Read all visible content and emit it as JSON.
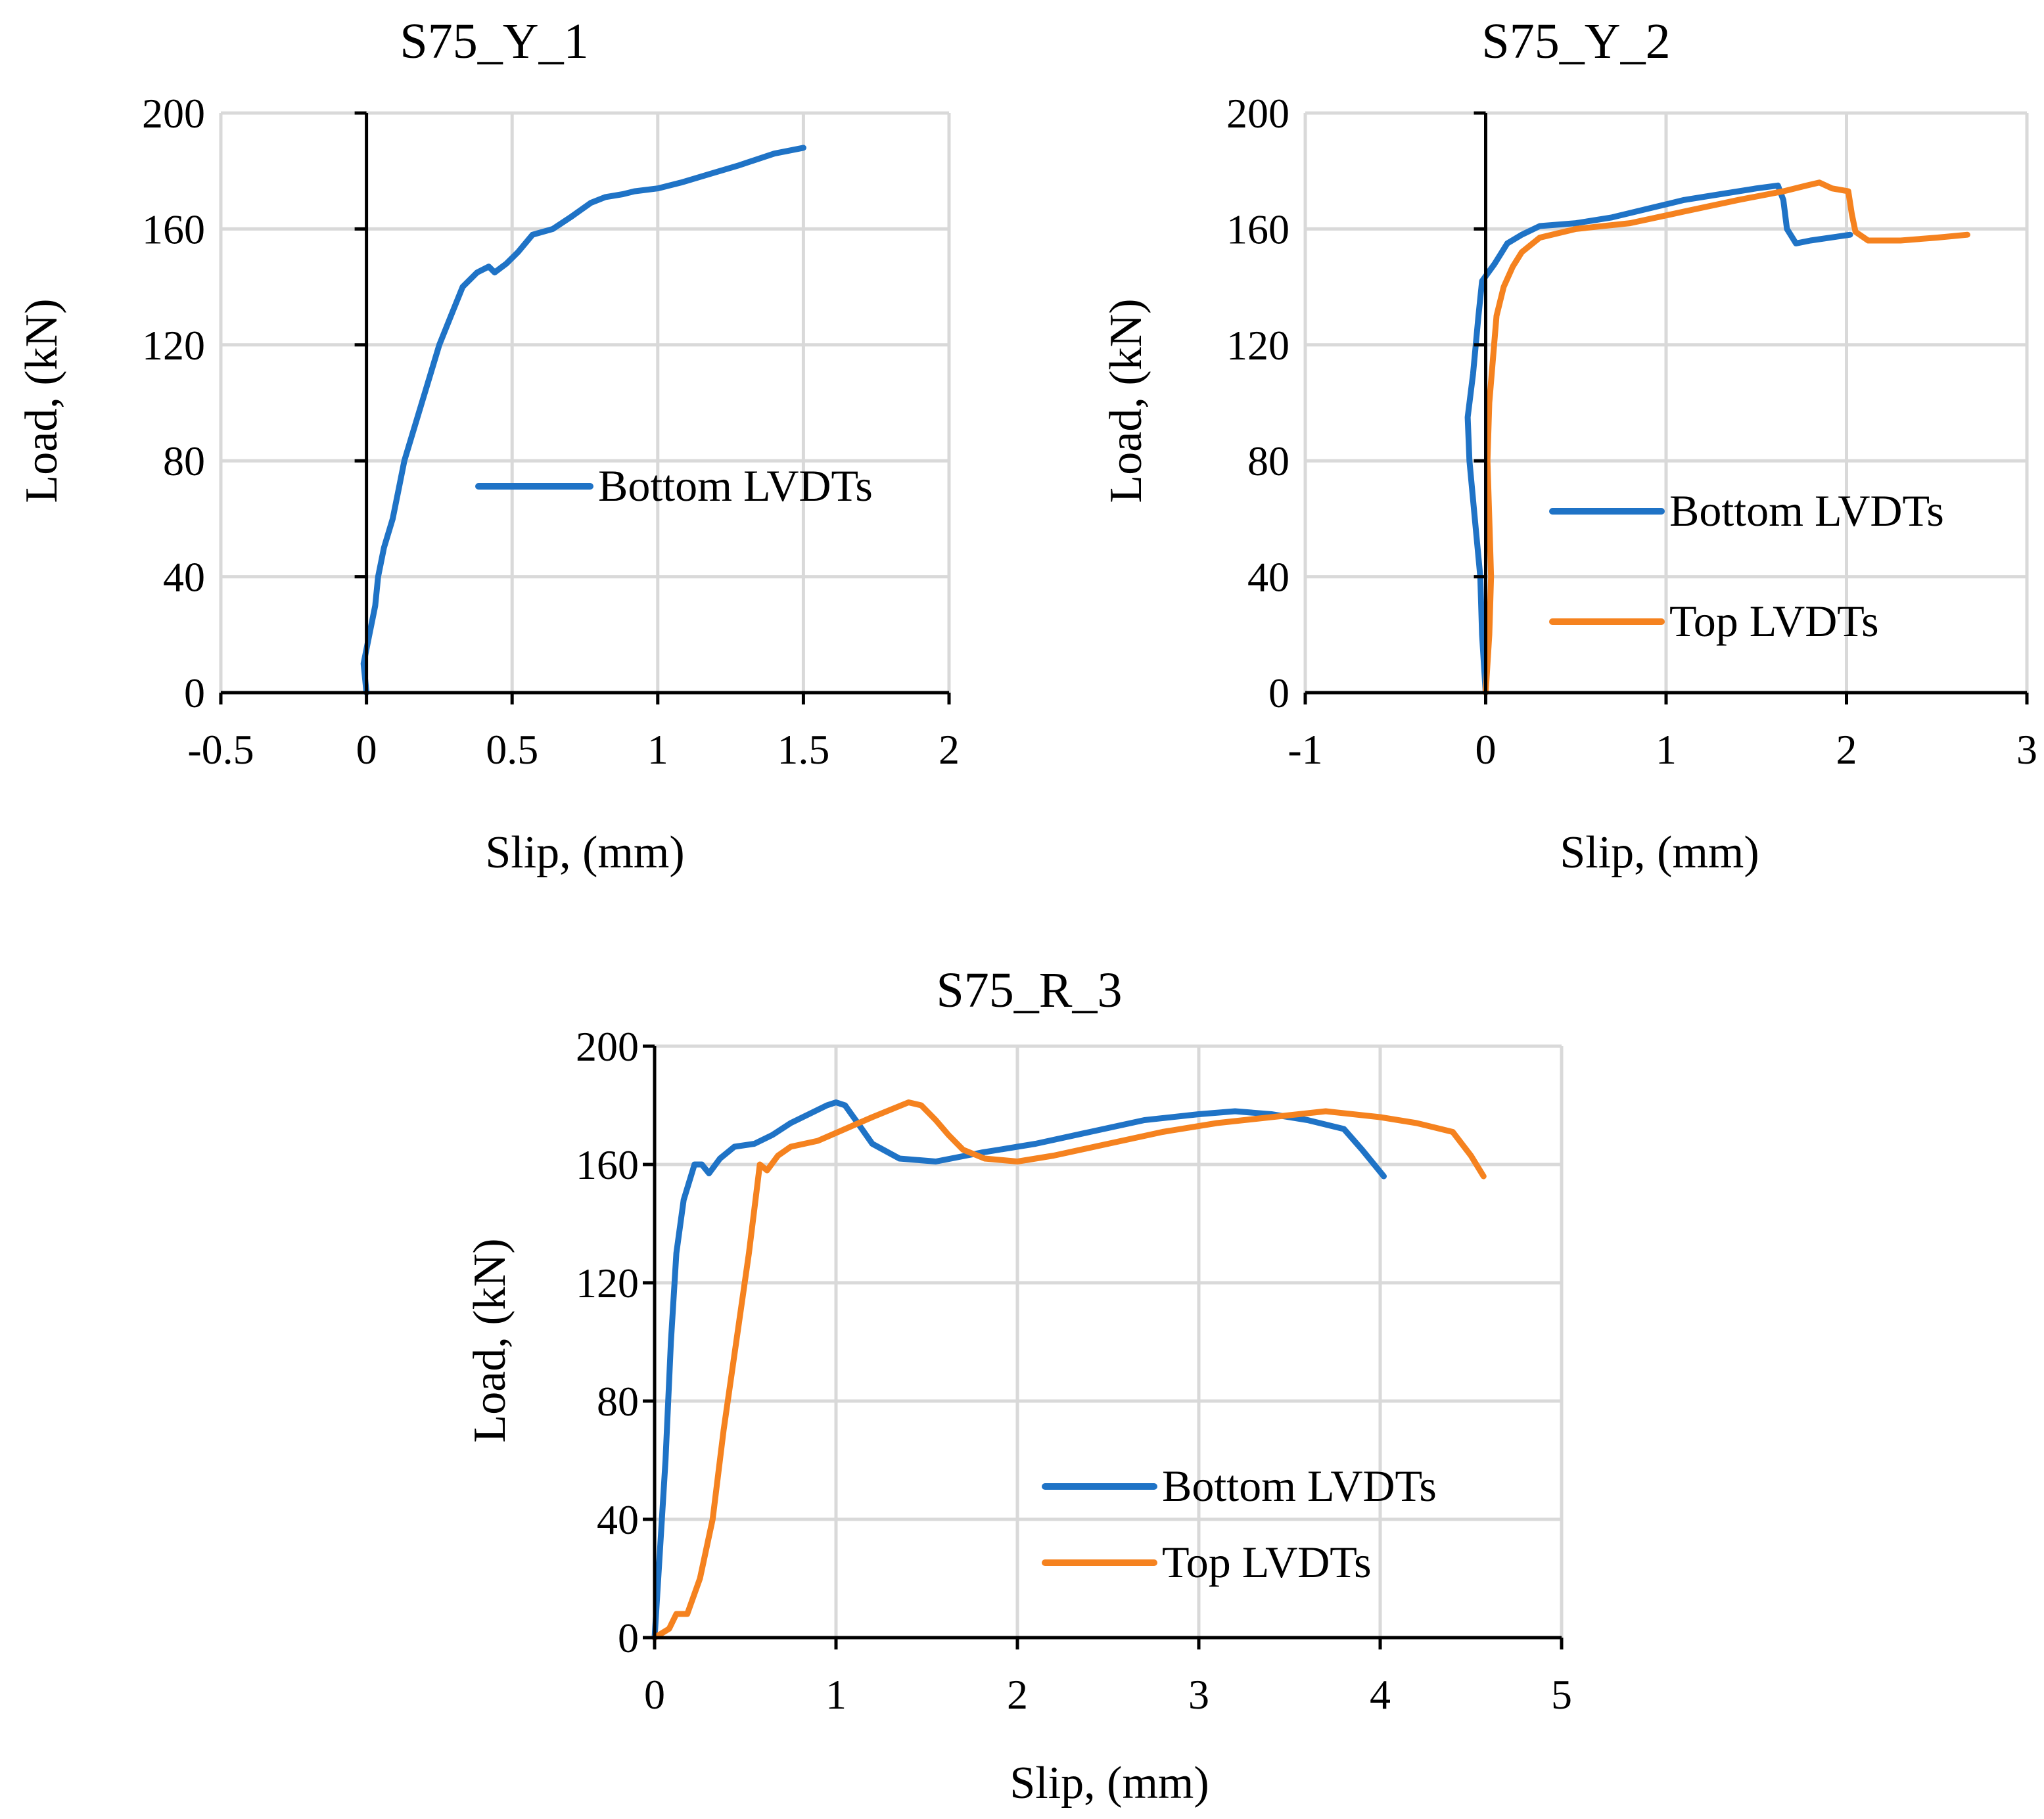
{
  "colors": {
    "bottom": "#1f73c6",
    "top": "#f5821f",
    "grid": "#d9d9d9",
    "axis": "#000000"
  },
  "chart_data": [
    {
      "type": "line",
      "title": "S75_Y_1",
      "xlabel": "Slip, (mm)",
      "ylabel": "Load, (kN)",
      "xlim": [
        -0.5,
        2
      ],
      "ylim": [
        0,
        200
      ],
      "xticks": [
        -0.5,
        0,
        0.5,
        1,
        1.5,
        2
      ],
      "xtick_labels": [
        "-0.5",
        "0",
        "0.5",
        "1",
        "1.5",
        "2"
      ],
      "yticks": [
        0,
        40,
        80,
        120,
        160,
        200
      ],
      "ytick_labels": [
        "0",
        "40",
        "80",
        "120",
        "160",
        "200"
      ],
      "grid": true,
      "legend_position": "middle-right",
      "series": [
        {
          "name": "Bottom LVDTs",
          "color": "#1f73c6",
          "points": [
            [
              0,
              0
            ],
            [
              -0.01,
              10
            ],
            [
              0.01,
              20
            ],
            [
              0.03,
              30
            ],
            [
              0.04,
              40
            ],
            [
              0.06,
              50
            ],
            [
              0.09,
              60
            ],
            [
              0.11,
              70
            ],
            [
              0.13,
              80
            ],
            [
              0.16,
              90
            ],
            [
              0.19,
              100
            ],
            [
              0.22,
              110
            ],
            [
              0.25,
              120
            ],
            [
              0.29,
              130
            ],
            [
              0.33,
              140
            ],
            [
              0.38,
              145
            ],
            [
              0.42,
              147
            ],
            [
              0.44,
              145
            ],
            [
              0.48,
              148
            ],
            [
              0.52,
              152
            ],
            [
              0.57,
              158
            ],
            [
              0.64,
              160
            ],
            [
              0.7,
              164
            ],
            [
              0.77,
              169
            ],
            [
              0.82,
              171
            ],
            [
              0.88,
              172
            ],
            [
              0.92,
              173
            ],
            [
              1,
              174
            ],
            [
              1.08,
              176
            ],
            [
              1.18,
              179
            ],
            [
              1.28,
              182
            ],
            [
              1.4,
              186
            ],
            [
              1.5,
              188
            ]
          ]
        }
      ]
    },
    {
      "type": "line",
      "title": "S75_Y_2",
      "xlabel": "Slip, (mm)",
      "ylabel": "Load, (kN)",
      "xlim": [
        -1,
        3
      ],
      "ylim": [
        0,
        200
      ],
      "xticks": [
        -1,
        0,
        1,
        2,
        3
      ],
      "xtick_labels": [
        "-1",
        "0",
        "1",
        "2",
        "3"
      ],
      "yticks": [
        0,
        40,
        80,
        120,
        160,
        200
      ],
      "ytick_labels": [
        "0",
        "40",
        "80",
        "120",
        "160",
        "200"
      ],
      "grid": true,
      "legend_position": "lower-right",
      "series": [
        {
          "name": "Bottom LVDTs",
          "color": "#1f73c6",
          "points": [
            [
              0,
              0
            ],
            [
              -0.02,
              20
            ],
            [
              -0.03,
              40
            ],
            [
              -0.06,
              60
            ],
            [
              -0.09,
              80
            ],
            [
              -0.1,
              95
            ],
            [
              -0.07,
              110
            ],
            [
              -0.04,
              130
            ],
            [
              -0.02,
              142
            ],
            [
              0.05,
              148
            ],
            [
              0.12,
              155
            ],
            [
              0.2,
              158
            ],
            [
              0.3,
              161
            ],
            [
              0.5,
              162
            ],
            [
              0.7,
              164
            ],
            [
              0.9,
              167
            ],
            [
              1.1,
              170
            ],
            [
              1.3,
              172
            ],
            [
              1.5,
              174
            ],
            [
              1.62,
              175
            ],
            [
              1.65,
              170
            ],
            [
              1.67,
              160
            ],
            [
              1.72,
              155
            ],
            [
              1.8,
              156
            ],
            [
              2.02,
              158
            ]
          ]
        },
        {
          "name": "Top LVDTs",
          "color": "#f5821f",
          "points": [
            [
              0,
              0
            ],
            [
              0.02,
              20
            ],
            [
              0.03,
              40
            ],
            [
              0.02,
              60
            ],
            [
              0.01,
              80
            ],
            [
              0.02,
              100
            ],
            [
              0.04,
              115
            ],
            [
              0.06,
              130
            ],
            [
              0.1,
              140
            ],
            [
              0.15,
              147
            ],
            [
              0.2,
              152
            ],
            [
              0.3,
              157
            ],
            [
              0.5,
              160
            ],
            [
              0.8,
              162
            ],
            [
              1.1,
              166
            ],
            [
              1.4,
              170
            ],
            [
              1.65,
              173
            ],
            [
              1.78,
              175
            ],
            [
              1.85,
              176
            ],
            [
              1.92,
              174
            ],
            [
              2.01,
              173
            ],
            [
              2.03,
              165
            ],
            [
              2.05,
              159
            ],
            [
              2.12,
              156
            ],
            [
              2.3,
              156
            ],
            [
              2.5,
              157
            ],
            [
              2.67,
              158
            ]
          ]
        }
      ]
    },
    {
      "type": "line",
      "title": "S75_R_3",
      "xlabel": "Slip, (mm)",
      "ylabel": "Load, (kN)",
      "xlim": [
        0,
        5
      ],
      "ylim": [
        0,
        200
      ],
      "xticks": [
        0,
        1,
        2,
        3,
        4,
        5
      ],
      "xtick_labels": [
        "0",
        "1",
        "2",
        "3",
        "4",
        "5"
      ],
      "yticks": [
        0,
        40,
        80,
        120,
        160,
        200
      ],
      "ytick_labels": [
        "0",
        "40",
        "80",
        "120",
        "160",
        "200"
      ],
      "grid": true,
      "legend_position": "lower-right",
      "series": [
        {
          "name": "Bottom LVDTs",
          "color": "#1f73c6",
          "points": [
            [
              0,
              0
            ],
            [
              0.03,
              30
            ],
            [
              0.06,
              60
            ],
            [
              0.09,
              100
            ],
            [
              0.12,
              130
            ],
            [
              0.16,
              148
            ],
            [
              0.2,
              156
            ],
            [
              0.22,
              160
            ],
            [
              0.26,
              160
            ],
            [
              0.3,
              157
            ],
            [
              0.36,
              162
            ],
            [
              0.44,
              166
            ],
            [
              0.55,
              167
            ],
            [
              0.65,
              170
            ],
            [
              0.75,
              174
            ],
            [
              0.85,
              177
            ],
            [
              0.95,
              180
            ],
            [
              1,
              181
            ],
            [
              1.05,
              180
            ],
            [
              1.12,
              174
            ],
            [
              1.2,
              167
            ],
            [
              1.35,
              162
            ],
            [
              1.55,
              161
            ],
            [
              1.8,
              164
            ],
            [
              2.1,
              167
            ],
            [
              2.4,
              171
            ],
            [
              2.7,
              175
            ],
            [
              3,
              177
            ],
            [
              3.2,
              178
            ],
            [
              3.4,
              177
            ],
            [
              3.6,
              175
            ],
            [
              3.8,
              172
            ],
            [
              3.9,
              165
            ],
            [
              4.02,
              156
            ]
          ]
        },
        {
          "name": "Top LVDTs",
          "color": "#f5821f",
          "points": [
            [
              0,
              0
            ],
            [
              0.08,
              3
            ],
            [
              0.12,
              8
            ],
            [
              0.18,
              8
            ],
            [
              0.25,
              20
            ],
            [
              0.32,
              40
            ],
            [
              0.38,
              70
            ],
            [
              0.45,
              100
            ],
            [
              0.52,
              130
            ],
            [
              0.56,
              150
            ],
            [
              0.58,
              160
            ],
            [
              0.62,
              158
            ],
            [
              0.68,
              163
            ],
            [
              0.75,
              166
            ],
            [
              0.9,
              168
            ],
            [
              1.05,
              172
            ],
            [
              1.2,
              176
            ],
            [
              1.32,
              179
            ],
            [
              1.4,
              181
            ],
            [
              1.47,
              180
            ],
            [
              1.55,
              175
            ],
            [
              1.62,
              170
            ],
            [
              1.7,
              165
            ],
            [
              1.82,
              162
            ],
            [
              2,
              161
            ],
            [
              2.2,
              163
            ],
            [
              2.5,
              167
            ],
            [
              2.8,
              171
            ],
            [
              3.1,
              174
            ],
            [
              3.4,
              176
            ],
            [
              3.7,
              178
            ],
            [
              4,
              176
            ],
            [
              4.2,
              174
            ],
            [
              4.4,
              171
            ],
            [
              4.5,
              163
            ],
            [
              4.57,
              156
            ]
          ]
        }
      ]
    }
  ]
}
